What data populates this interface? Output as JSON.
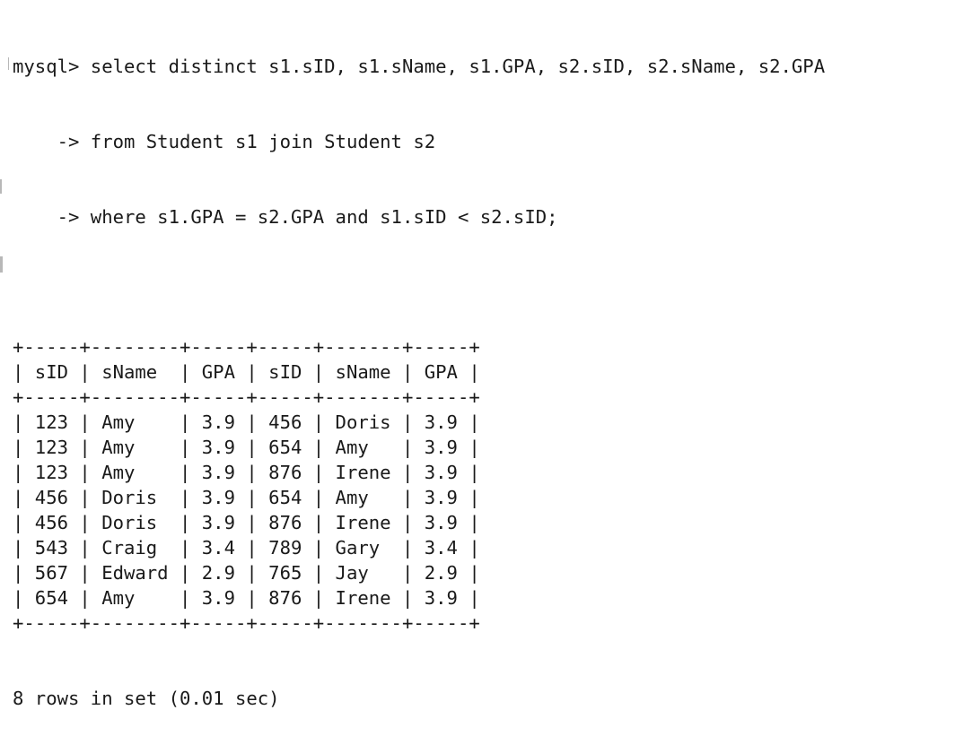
{
  "terminal": {
    "prompt": "mysql> ",
    "continuation": "    -> ",
    "query_lines": [
      "select distinct s1.sID, s1.sName, s1.GPA, s2.sID, s2.sName, s2.GPA",
      "from Student s1 join Student s2",
      "where s1.GPA = s2.GPA and s1.sID < s2.sID;"
    ],
    "table": {
      "columns": [
        "sID",
        "sName",
        "GPA",
        "sID",
        "sName",
        "GPA"
      ],
      "rows": [
        [
          "123",
          "Amy",
          "3.9",
          "456",
          "Doris",
          "3.9"
        ],
        [
          "123",
          "Amy",
          "3.9",
          "654",
          "Amy",
          "3.9"
        ],
        [
          "123",
          "Amy",
          "3.9",
          "876",
          "Irene",
          "3.9"
        ],
        [
          "456",
          "Doris",
          "3.9",
          "654",
          "Amy",
          "3.9"
        ],
        [
          "456",
          "Doris",
          "3.9",
          "876",
          "Irene",
          "3.9"
        ],
        [
          "543",
          "Craig",
          "3.4",
          "789",
          "Gary",
          "3.4"
        ],
        [
          "567",
          "Edward",
          "2.9",
          "765",
          "Jay",
          "2.9"
        ],
        [
          "654",
          "Amy",
          "3.9",
          "876",
          "Irene",
          "3.9"
        ]
      ]
    },
    "status": "8 rows in set (0.01 sec)"
  }
}
